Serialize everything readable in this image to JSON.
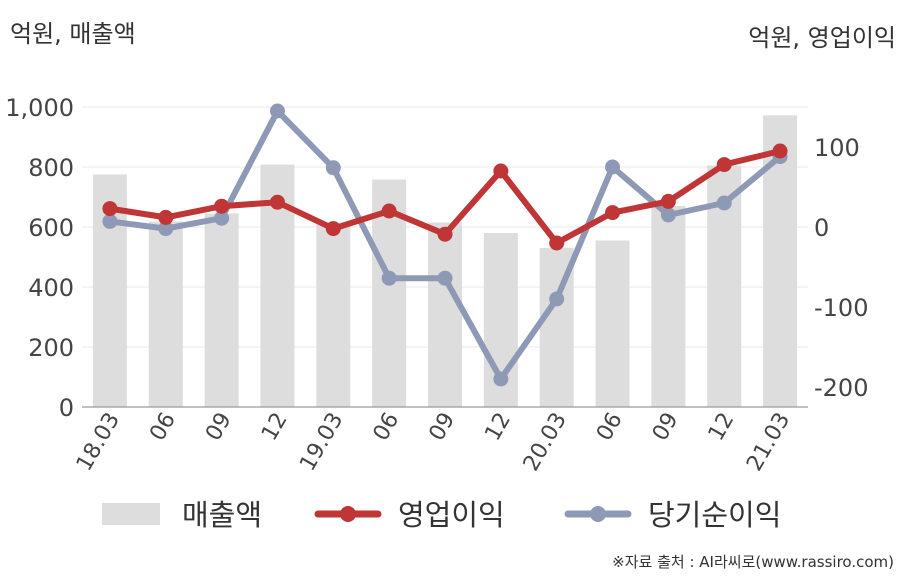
{
  "chart_data": {
    "type": "bar+line",
    "left_unit_label": "억원, 매출액",
    "right_unit_label": "억원, 영업이익",
    "categories": [
      "18.03",
      "06",
      "09",
      "12",
      "19.03",
      "06",
      "09",
      "12",
      "20.03",
      "06",
      "09",
      "12",
      "21.03"
    ],
    "left_axis": {
      "ylim": [
        0,
        1000
      ],
      "ticks": [
        "0",
        "200",
        "400",
        "600",
        "800",
        "1,000"
      ],
      "tick_values": [
        0,
        200,
        400,
        600,
        800,
        1000
      ]
    },
    "right_axis": {
      "ylim": [
        -225,
        150
      ],
      "ticks": [
        "-200",
        "-100",
        "0",
        "100"
      ],
      "tick_values": [
        -200,
        -100,
        0,
        100
      ]
    },
    "series": [
      {
        "name": "매출액",
        "kind": "bar",
        "axis": "left",
        "color": "#dddddd",
        "values": [
          775,
          618,
          645,
          808,
          608,
          758,
          615,
          580,
          530,
          555,
          670,
          805,
          972
        ]
      },
      {
        "name": "영업이익",
        "kind": "line",
        "axis": "right",
        "color": "#c03535",
        "values": [
          23,
          12,
          26,
          31,
          -2,
          20,
          -9,
          70,
          -20,
          18,
          32,
          78,
          95
        ]
      },
      {
        "name": "당기순이익",
        "kind": "line",
        "axis": "right",
        "color": "#8e9ab5",
        "values": [
          7,
          -2,
          11,
          145,
          74,
          -64,
          -64,
          -190,
          -90,
          75,
          15,
          30,
          88
        ]
      }
    ],
    "legend_position": "bottom",
    "grid": true
  },
  "source_text": "※자료 출처 : AI라씨로(www.rassiro.com)"
}
